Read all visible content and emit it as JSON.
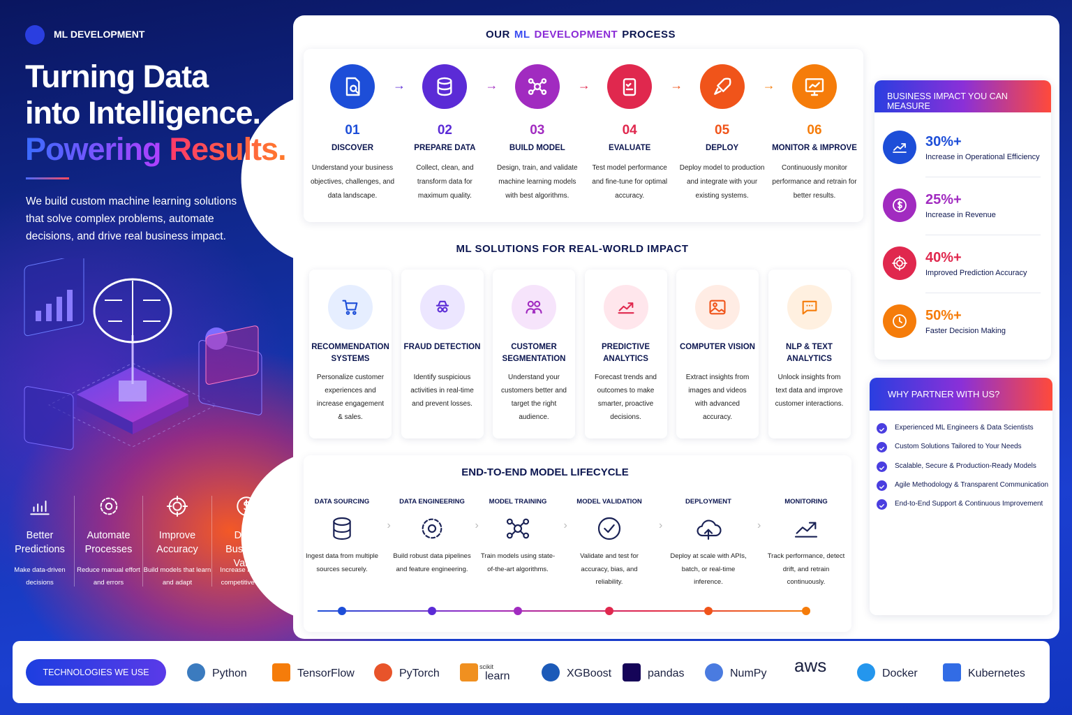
{
  "sidebar": {
    "label": "ML DEVELOPMENT",
    "headline": [
      "Turning Data",
      "into Intelligence."
    ],
    "headline_accent": [
      "Powering",
      "Results."
    ],
    "description": "We build custom machine learning solutions that solve complex problems, automate decisions, and drive real business impact.",
    "benefits": [
      {
        "title": "Better Predictions",
        "text": "Make data-driven decisions"
      },
      {
        "title": "Automate Processes",
        "text": "Reduce manual effort and errors"
      },
      {
        "title": "Improve Accuracy",
        "text": "Build models that learn and adapt"
      },
      {
        "title": "Drive Business Value",
        "text": "Increase ROI and competitive edge"
      }
    ]
  },
  "process": {
    "title": [
      "OUR",
      "ML",
      "DEVELOPMENT",
      "PROCESS"
    ],
    "steps": [
      {
        "number": "01",
        "name": "DISCOVER",
        "text": "Understand your business objectives, challenges, and data landscape."
      },
      {
        "number": "02",
        "name": "PREPARE DATA",
        "text": "Collect, clean, and transform data for maximum quality."
      },
      {
        "number": "03",
        "name": "BUILD MODEL",
        "text": "Design, train, and validate machine learning models with best algorithms."
      },
      {
        "number": "04",
        "name": "EVALUATE",
        "text": "Test model performance and fine-tune for optimal accuracy."
      },
      {
        "number": "05",
        "name": "DEPLOY",
        "text": "Deploy model to production and integrate with your existing systems."
      },
      {
        "number": "06",
        "name": "MONITOR & IMPROVE",
        "text": "Continuously monitor performance and retrain for better results."
      }
    ]
  },
  "solutions": {
    "title": "ML SOLUTIONS FOR REAL-WORLD IMPACT",
    "items": [
      {
        "name": "RECOMMENDATION SYSTEMS",
        "text": "Personalize customer experiences and increase engagement & sales."
      },
      {
        "name": "FRAUD DETECTION",
        "text": "Identify suspicious activities in real-time and prevent losses."
      },
      {
        "name": "CUSTOMER SEGMENTATION",
        "text": "Understand your customers better and target the right audience."
      },
      {
        "name": "PREDICTIVE ANALYTICS",
        "text": "Forecast trends and outcomes to make smarter, proactive decisions."
      },
      {
        "name": "COMPUTER VISION",
        "text": "Extract insights from images and videos with advanced accuracy."
      },
      {
        "name": "NLP & TEXT ANALYTICS",
        "text": "Unlock insights from text data and improve customer interactions."
      }
    ]
  },
  "lifecycle": {
    "title": "END-TO-END MODEL LIFECYCLE",
    "stages": [
      {
        "name": "DATA SOURCING",
        "text": "Ingest data from multiple sources securely."
      },
      {
        "name": "DATA ENGINEERING",
        "text": "Build robust data pipelines and feature engineering."
      },
      {
        "name": "MODEL TRAINING",
        "text": "Train models using state-of-the-art algorithms."
      },
      {
        "name": "MODEL VALIDATION",
        "text": "Validate and test for accuracy, bias, and reliability."
      },
      {
        "name": "DEPLOYMENT",
        "text": "Deploy at scale with APIs, batch, or real-time inference."
      },
      {
        "name": "MONITORING",
        "text": "Track performance, detect drift, and retrain continuously."
      }
    ]
  },
  "impact": {
    "title": "BUSINESS IMPACT YOU CAN MEASURE",
    "items": [
      {
        "value": "30%+",
        "label": "Increase in Operational Efficiency"
      },
      {
        "value": "25%+",
        "label": "Increase in Revenue"
      },
      {
        "value": "40%+",
        "label": "Improved Prediction Accuracy"
      },
      {
        "value": "50%+",
        "label": "Faster Decision Making"
      }
    ]
  },
  "partner": {
    "title": "WHY PARTNER WITH US?",
    "items": [
      "Experienced ML Engineers & Data Scientists",
      "Custom Solutions Tailored to Your Needs",
      "Scalable, Secure & Production-Ready Models",
      "Agile Methodology & Transparent Communication",
      "End-to-End Support & Continuous Improvement"
    ]
  },
  "technologies": {
    "title": "TECHNOLOGIES WE USE",
    "items": [
      {
        "name": "Python"
      },
      {
        "name": "TensorFlow"
      },
      {
        "name": "PyTorch"
      },
      {
        "prefix": "scikit",
        "name": "learn"
      },
      {
        "name": "XGBoost"
      },
      {
        "name": "pandas"
      },
      {
        "name": "NumPy"
      },
      {
        "name": "aws"
      },
      {
        "name": "Docker"
      },
      {
        "name": "Kubernetes"
      }
    ]
  }
}
